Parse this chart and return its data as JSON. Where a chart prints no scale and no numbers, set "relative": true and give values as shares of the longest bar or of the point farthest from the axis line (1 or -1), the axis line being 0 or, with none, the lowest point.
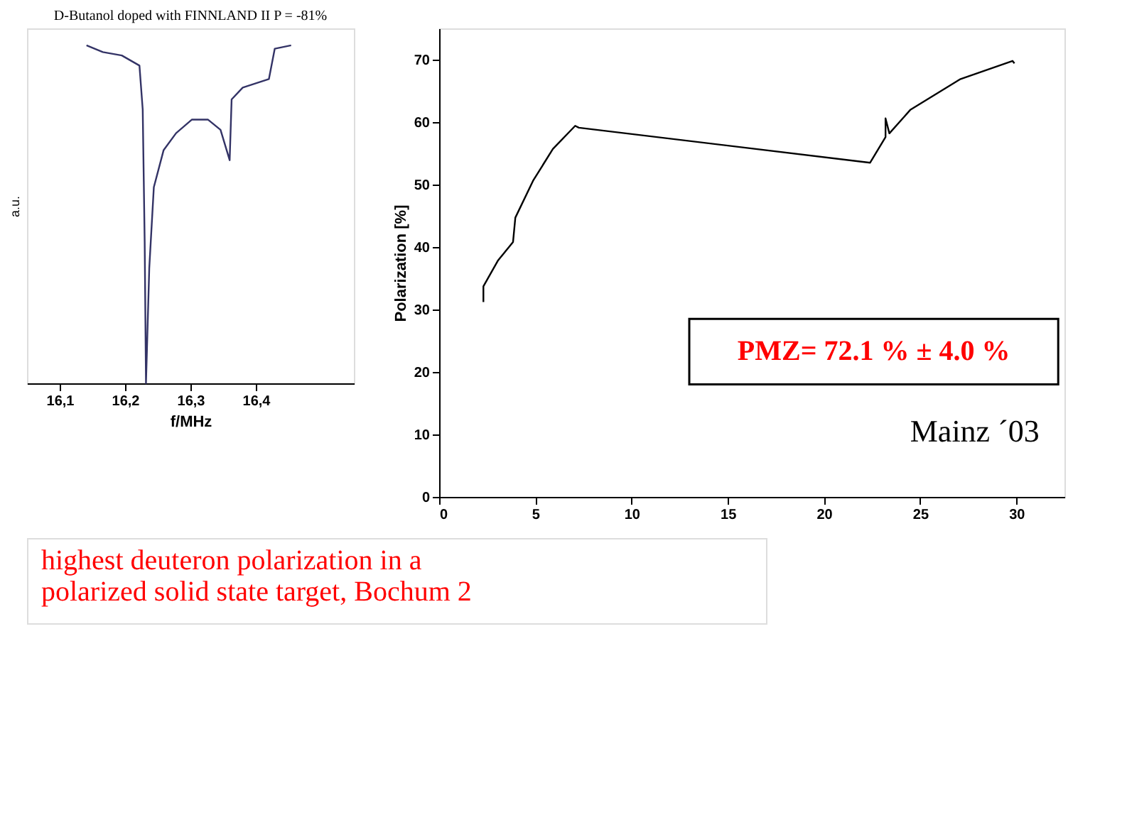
{
  "chart_data": [
    {
      "type": "line",
      "ylabel": "Polarization [%]",
      "xlim": [
        0,
        32.5
      ],
      "ylim": [
        0,
        75
      ],
      "xticks": [
        0,
        5,
        10,
        15,
        20,
        25,
        30
      ],
      "yticks": [
        0,
        10,
        20,
        30,
        40,
        50,
        60,
        70
      ],
      "grid": false,
      "marker": "none",
      "line_style": "solid",
      "series": [
        {
          "color": "#000000",
          "x": [
            2.3,
            2.3,
            3.05,
            3.84,
            3.96,
            4.88,
            5.91,
            7.07,
            7.26,
            22.4,
            23.2,
            23.2,
            23.4,
            24.5,
            27.1,
            29.8,
            29.9
          ],
          "values": [
            31.2,
            33.7,
            37.8,
            40.8,
            44.7,
            50.6,
            55.7,
            59.4,
            59.1,
            53.5,
            57.6,
            60.6,
            58.2,
            62.0,
            66.9,
            69.8,
            69.4
          ]
        }
      ],
      "annotations": [
        "PMZ= 72.1 % ± 4.0 %",
        "Mainz ´03",
        "highest deuteron polarization in a\npolarized solid state target, Bochum 2"
      ]
    },
    {
      "type": "line",
      "relative": true,
      "title": "D-Butanol doped with FINNLAND II P = -81%",
      "xlabel": "f/MHz",
      "ylabel": "a.u.",
      "xlim": [
        16.05,
        16.55
      ],
      "xticks": [
        {
          "value": 16.1,
          "label": "16,1"
        },
        {
          "value": 16.2,
          "label": "16,2"
        },
        {
          "value": 16.3,
          "label": "16,3"
        },
        {
          "value": 16.4,
          "label": "16,4"
        }
      ],
      "grid": false,
      "marker": "none",
      "line_style": "solid",
      "series": [
        {
          "color": "#333366",
          "x": [
            16.141,
            16.166,
            16.195,
            16.222,
            16.227,
            16.23,
            16.232,
            16.237,
            16.244,
            16.259,
            16.278,
            16.302,
            16.327,
            16.346,
            16.36,
            16.363,
            16.38,
            16.42,
            16.429,
            16.454
          ],
          "values": [
            1,
            0.98,
            0.97,
            0.94,
            0.81,
            0.42,
            0,
            0.34,
            0.58,
            0.69,
            0.74,
            0.78,
            0.78,
            0.75,
            0.66,
            0.84,
            0.875,
            0.9,
            0.99,
            1
          ]
        }
      ]
    }
  ]
}
